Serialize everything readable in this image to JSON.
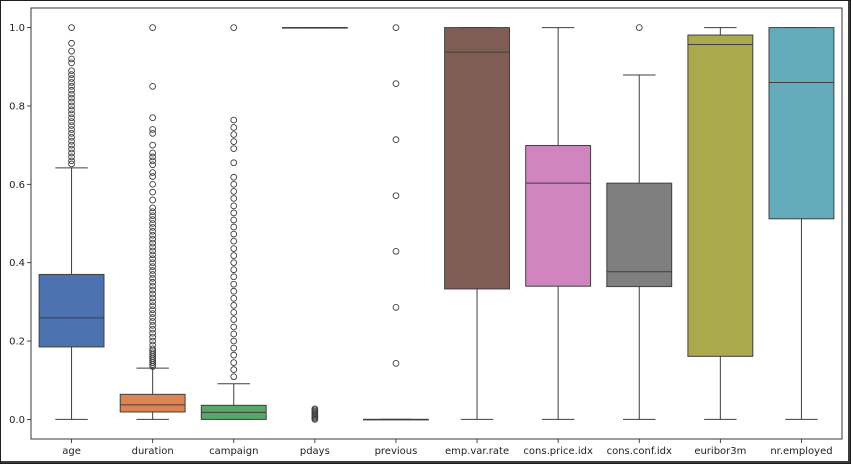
{
  "chart_data": {
    "type": "box",
    "title": "",
    "xlabel": "",
    "ylabel": "",
    "ylim": [
      -0.05,
      1.05
    ],
    "yticks": [
      0.0,
      0.2,
      0.4,
      0.6,
      0.8,
      1.0
    ],
    "ytick_labels": [
      "0.0",
      "0.2",
      "0.4",
      "0.6",
      "0.8",
      "1.0"
    ],
    "grid": false,
    "legend": "none",
    "categories": [
      "age",
      "duration",
      "campaign",
      "pdays",
      "previous",
      "emp.var.rate",
      "cons.price.idx",
      "cons.conf.idx",
      "euribor3m",
      "nr.employed"
    ],
    "boxes": [
      {
        "name": "age",
        "color": "#4c72b0",
        "whislo": 0.0,
        "q1": 0.185,
        "med": 0.259,
        "q3": 0.37,
        "whishi": 0.642,
        "fliers": [
          0.652,
          0.66,
          0.67,
          0.68,
          0.69,
          0.7,
          0.71,
          0.72,
          0.73,
          0.74,
          0.75,
          0.76,
          0.77,
          0.78,
          0.79,
          0.8,
          0.81,
          0.82,
          0.83,
          0.84,
          0.85,
          0.86,
          0.87,
          0.88,
          0.89,
          0.91,
          0.92,
          0.94,
          0.96,
          1.0
        ]
      },
      {
        "name": "duration",
        "color": "#dd8452",
        "whislo": 0.0,
        "q1": 0.019,
        "med": 0.037,
        "q3": 0.064,
        "whishi": 0.131,
        "fliers": [
          0.135,
          0.14,
          0.145,
          0.15,
          0.155,
          0.16,
          0.165,
          0.17,
          0.175,
          0.18,
          0.19,
          0.2,
          0.21,
          0.22,
          0.23,
          0.24,
          0.25,
          0.26,
          0.27,
          0.28,
          0.29,
          0.3,
          0.31,
          0.32,
          0.33,
          0.34,
          0.35,
          0.36,
          0.37,
          0.38,
          0.39,
          0.4,
          0.41,
          0.42,
          0.43,
          0.44,
          0.45,
          0.46,
          0.47,
          0.48,
          0.49,
          0.5,
          0.51,
          0.52,
          0.53,
          0.54,
          0.56,
          0.58,
          0.6,
          0.62,
          0.63,
          0.65,
          0.66,
          0.67,
          0.68,
          0.7,
          0.73,
          0.74,
          0.77,
          0.85,
          1.0
        ]
      },
      {
        "name": "campaign",
        "color": "#55a868",
        "whislo": 0.0,
        "q1": 0.0,
        "med": 0.018,
        "q3": 0.036,
        "whishi": 0.091,
        "fliers": [
          0.109,
          0.127,
          0.145,
          0.164,
          0.182,
          0.2,
          0.218,
          0.236,
          0.255,
          0.273,
          0.291,
          0.309,
          0.327,
          0.345,
          0.364,
          0.382,
          0.4,
          0.418,
          0.436,
          0.455,
          0.473,
          0.491,
          0.509,
          0.527,
          0.545,
          0.564,
          0.582,
          0.6,
          0.618,
          0.655,
          0.691,
          0.709,
          0.727,
          0.745,
          0.764,
          1.0
        ]
      },
      {
        "name": "pdays",
        "color": "#c44e52",
        "whislo": 1.0,
        "q1": 1.0,
        "med": 1.0,
        "q3": 1.0,
        "whishi": 1.0,
        "fliers": [
          0.0,
          0.003,
          0.006,
          0.009,
          0.012,
          0.015,
          0.018,
          0.021,
          0.024,
          0.027
        ]
      },
      {
        "name": "previous",
        "color": "#8172b3",
        "whislo": 0.0,
        "q1": 0.0,
        "med": 0.0,
        "q3": 0.0,
        "whishi": 0.0,
        "fliers": [
          0.143,
          0.286,
          0.429,
          0.571,
          0.714,
          0.857,
          1.0
        ]
      },
      {
        "name": "emp.var.rate",
        "color": "#7f5d55",
        "whislo": 0.0,
        "q1": 0.333,
        "med": 0.9375,
        "q3": 1.0,
        "whishi": 1.0,
        "fliers": []
      },
      {
        "name": "cons.price.idx",
        "color": "#d084c0",
        "whislo": 0.0,
        "q1": 0.34,
        "med": 0.603,
        "q3": 0.699,
        "whishi": 1.0,
        "fliers": []
      },
      {
        "name": "cons.conf.idx",
        "color": "#7f7f7f",
        "whislo": 0.0,
        "q1": 0.339,
        "med": 0.377,
        "q3": 0.603,
        "whishi": 0.879,
        "fliers": [
          1.0
        ]
      },
      {
        "name": "euribor3m",
        "color": "#aaa94b",
        "whislo": 0.0,
        "q1": 0.161,
        "med": 0.957,
        "q3": 0.981,
        "whishi": 1.0,
        "fliers": []
      },
      {
        "name": "nr.employed",
        "color": "#64abbb",
        "whislo": 0.0,
        "q1": 0.512,
        "med": 0.86,
        "q3": 1.0,
        "whishi": 1.0,
        "fliers": []
      }
    ]
  }
}
